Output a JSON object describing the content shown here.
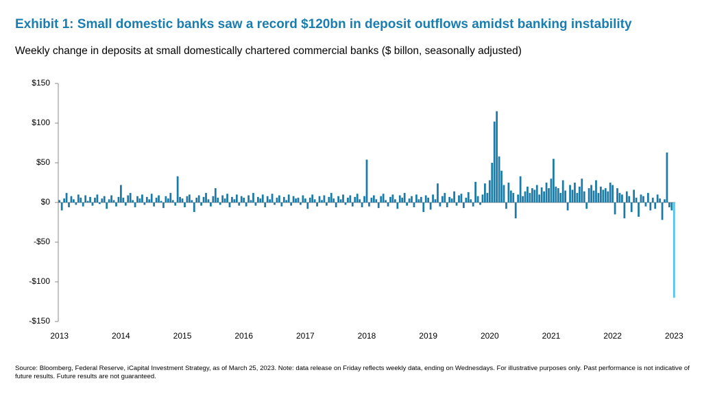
{
  "chart_data": {
    "type": "bar",
    "title": "Exhibit 1: Small domestic banks saw a record $120bn in deposit outflows amidst banking instability",
    "subtitle": "Weekly change in deposits at small domestically chartered commercial banks ($ billon, seasonally adjusted)",
    "source": "Source: Bloomberg, Federal Reserve, iCapital Investment Strategy, as of March 25, 2023. Note: data release on Friday reflects weekly data, ending on Wednesdays. For illustrative purposes only. Past performance is not indicative of future results. Future results are not guaranteed.",
    "color": "#1b7ba6",
    "last_bar_color": "#4fc3f0",
    "ylim": [
      -150,
      150
    ],
    "yticks": [
      {
        "value": -150,
        "label": "-$150"
      },
      {
        "value": -100,
        "label": "-$100"
      },
      {
        "value": -50,
        "label": "-$50"
      },
      {
        "value": 0,
        "label": "$0"
      },
      {
        "value": 50,
        "label": "$50"
      },
      {
        "value": 100,
        "label": "$100"
      },
      {
        "value": 150,
        "label": "$150"
      }
    ],
    "categories": [
      "2013",
      null,
      null,
      null,
      null,
      null,
      null,
      null,
      null,
      null,
      null,
      null,
      null,
      null,
      null,
      null,
      null,
      null,
      null,
      null,
      null,
      null,
      null,
      null,
      null,
      null,
      "2014",
      null,
      null,
      null,
      null,
      null,
      null,
      null,
      null,
      null,
      null,
      null,
      null,
      null,
      null,
      null,
      null,
      null,
      null,
      null,
      null,
      null,
      null,
      null,
      null,
      null,
      "2015",
      null,
      null,
      null,
      null,
      null,
      null,
      null,
      null,
      null,
      null,
      null,
      null,
      null,
      null,
      null,
      null,
      null,
      null,
      null,
      null,
      null,
      null,
      null,
      null,
      null,
      "2016",
      null,
      null,
      null,
      null,
      null,
      null,
      null,
      null,
      null,
      null,
      null,
      null,
      null,
      null,
      null,
      null,
      null,
      null,
      null,
      null,
      null,
      null,
      null,
      null,
      null,
      "2017",
      null,
      null,
      null,
      null,
      null,
      null,
      null,
      null,
      null,
      null,
      null,
      null,
      null,
      null,
      null,
      null,
      null,
      null,
      null,
      null,
      null,
      null,
      null,
      null,
      null,
      "2018",
      null,
      null,
      null,
      null,
      null,
      null,
      null,
      null,
      null,
      null,
      null,
      null,
      null,
      null,
      null,
      null,
      null,
      null,
      null,
      null,
      null,
      null,
      null,
      null,
      null,
      "2019",
      null,
      null,
      null,
      null,
      null,
      null,
      null,
      null,
      null,
      null,
      null,
      null,
      null,
      null,
      null,
      null,
      null,
      null,
      null,
      null,
      null,
      null,
      null,
      null,
      null,
      "2020",
      null,
      null,
      null,
      null,
      null,
      null,
      null,
      null,
      null,
      null,
      null,
      null,
      null,
      null,
      null,
      null,
      null,
      null,
      null,
      null,
      null,
      null,
      null,
      null,
      null,
      "2021",
      null,
      null,
      null,
      null,
      null,
      null,
      null,
      null,
      null,
      null,
      null,
      null,
      null,
      null,
      null,
      null,
      null,
      null,
      null,
      null,
      null,
      null,
      null,
      null,
      null,
      "2022",
      null,
      null,
      null,
      null,
      null,
      null,
      null,
      null,
      null,
      null,
      null,
      null,
      null,
      null,
      null,
      null,
      null,
      null,
      null,
      null,
      null,
      null,
      null,
      null,
      null,
      "2023"
    ],
    "values": [
      3,
      -10,
      5,
      12,
      -6,
      8,
      4,
      -3,
      10,
      6,
      -5,
      9,
      2,
      7,
      -4,
      6,
      10,
      -2,
      5,
      8,
      -8,
      4,
      9,
      3,
      -5,
      7,
      22,
      6,
      -4,
      9,
      12,
      3,
      -6,
      8,
      5,
      10,
      -3,
      7,
      4,
      11,
      -5,
      6,
      9,
      2,
      -7,
      8,
      5,
      12,
      3,
      -4,
      33,
      7,
      5,
      -6,
      8,
      10,
      3,
      -12,
      6,
      9,
      -4,
      7,
      12,
      4,
      -5,
      8,
      18,
      6,
      -3,
      9,
      5,
      11,
      -6,
      7,
      4,
      10,
      -4,
      8,
      6,
      -5,
      9,
      3,
      12,
      -4,
      7,
      5,
      10,
      -6,
      8,
      4,
      11,
      -3,
      6,
      9,
      -5,
      7,
      3,
      10,
      -4,
      8,
      5,
      6,
      -3,
      9,
      5,
      -8,
      6,
      10,
      4,
      -5,
      8,
      3,
      9,
      -4,
      7,
      12,
      5,
      -6,
      8,
      4,
      10,
      -3,
      6,
      9,
      -5,
      7,
      11,
      4,
      -6,
      8,
      54,
      -5,
      6,
      9,
      4,
      -7,
      8,
      11,
      3,
      -5,
      7,
      10,
      4,
      -8,
      9,
      6,
      12,
      -4,
      5,
      8,
      -6,
      10,
      4,
      7,
      -12,
      9,
      6,
      -9,
      10,
      4,
      24,
      -5,
      8,
      12,
      -6,
      7,
      5,
      14,
      -4,
      9,
      11,
      -7,
      6,
      13,
      4,
      -5,
      26,
      8,
      -3,
      10,
      24,
      12,
      28,
      50,
      102,
      115,
      58,
      40,
      22,
      -8,
      25,
      15,
      12,
      -20,
      10,
      33,
      8,
      14,
      20,
      12,
      18,
      16,
      22,
      10,
      19,
      14,
      25,
      18,
      30,
      55,
      20,
      18,
      12,
      28,
      15,
      -10,
      22,
      16,
      25,
      12,
      20,
      30,
      14,
      -8,
      18,
      22,
      15,
      28,
      12,
      20,
      16,
      18,
      14,
      25,
      22,
      -15,
      18,
      12,
      10,
      -20,
      14,
      8,
      -12,
      16,
      6,
      -18,
      10,
      8,
      -5,
      12,
      -10,
      6,
      -8,
      10,
      5,
      -22,
      4,
      63,
      -6,
      -10,
      -120
    ]
  }
}
